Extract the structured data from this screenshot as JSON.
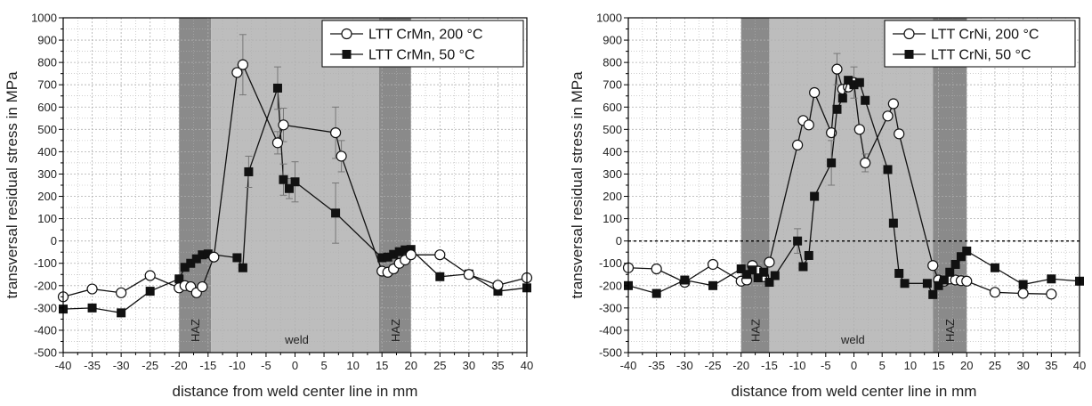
{
  "figure": {
    "panels": [
      {
        "name": "left",
        "zones": {
          "haz": "HAZ",
          "weld": "weld"
        }
      },
      {
        "name": "right",
        "zones": {
          "haz": "HAZ",
          "weld": "weld"
        }
      }
    ]
  },
  "colors": {
    "haz_shade": "#8a8a8a",
    "weld_shade": "#bdbdbd",
    "grid": "#b0b0b0",
    "series": "#111111",
    "error_bar": "#777777",
    "zero_line": "#000000"
  },
  "chart_data": [
    {
      "type": "line",
      "xlabel": "distance from weld center line in mm",
      "ylabel": "transversal residual stress in MPa",
      "xlim": [
        -40,
        40
      ],
      "ylim": [
        -500,
        1000
      ],
      "xticks": [
        -40,
        -35,
        -30,
        -25,
        -20,
        -15,
        -10,
        -5,
        0,
        5,
        10,
        15,
        20,
        25,
        30,
        35,
        40
      ],
      "yticks": [
        -500,
        -400,
        -300,
        -200,
        -100,
        0,
        100,
        200,
        300,
        400,
        500,
        600,
        700,
        800,
        900,
        1000
      ],
      "grid": true,
      "legend_position": "top-right",
      "zero_line": false,
      "zones": [
        {
          "kind": "haz",
          "from": -20,
          "to": -14.5
        },
        {
          "kind": "weld",
          "from": -14.5,
          "to": 14.5
        },
        {
          "kind": "haz",
          "from": 14.5,
          "to": 20
        }
      ],
      "series": [
        {
          "name": "LTT CrMn, 50 °C",
          "marker": "square",
          "points": [
            [
              -40,
              -305,
              null
            ],
            [
              -35,
              -300,
              null
            ],
            [
              -30,
              -322,
              null
            ],
            [
              -25,
              -225,
              null
            ],
            [
              -20,
              -170,
              null
            ],
            [
              -19,
              -118,
              null
            ],
            [
              -18,
              -100,
              null
            ],
            [
              -17,
              -80,
              null
            ],
            [
              -16,
              -62,
              null
            ],
            [
              -15,
              -58,
              null
            ],
            [
              -10,
              -75,
              null
            ],
            [
              -9,
              -120,
              null
            ],
            [
              -8,
              310,
              70
            ],
            [
              -3,
              685,
              95
            ],
            [
              -2,
              275,
              70
            ],
            [
              -1,
              235,
              45
            ],
            [
              0,
              265,
              90
            ],
            [
              7,
              125,
              135
            ],
            [
              15,
              -75,
              null
            ],
            [
              16,
              -72,
              null
            ],
            [
              17,
              -60,
              null
            ],
            [
              18,
              -48,
              null
            ],
            [
              19,
              -40,
              null
            ],
            [
              20,
              -38,
              null
            ],
            [
              25,
              -160,
              null
            ],
            [
              30,
              -148,
              null
            ],
            [
              35,
              -225,
              null
            ],
            [
              40,
              -210,
              null
            ]
          ]
        },
        {
          "name": "LTT CrMn, 200 °C",
          "marker": "circle",
          "points": [
            [
              -40,
              -250,
              null
            ],
            [
              -35,
              -215,
              null
            ],
            [
              -30,
              -232,
              null
            ],
            [
              -25,
              -155,
              null
            ],
            [
              -20,
              -210,
              null
            ],
            [
              -19,
              -200,
              null
            ],
            [
              -18,
              -205,
              null
            ],
            [
              -17,
              -232,
              null
            ],
            [
              -16,
              -205,
              null
            ],
            [
              -14,
              -72,
              null
            ],
            [
              -10,
              755,
              null
            ],
            [
              -9,
              790,
              135
            ],
            [
              -3,
              440,
              50
            ],
            [
              -2,
              520,
              75
            ],
            [
              7,
              485,
              115
            ],
            [
              8,
              380,
              70
            ],
            [
              15,
              -135,
              null
            ],
            [
              16,
              -140,
              null
            ],
            [
              17,
              -125,
              null
            ],
            [
              18,
              -100,
              null
            ],
            [
              19,
              -85,
              null
            ],
            [
              20,
              -62,
              null
            ],
            [
              25,
              -62,
              null
            ],
            [
              30,
              -150,
              null
            ],
            [
              35,
              -198,
              null
            ],
            [
              40,
              -165,
              null
            ]
          ]
        }
      ]
    },
    {
      "type": "line",
      "xlabel": "distance from weld center line in mm",
      "ylabel": "transversal residual stress in MPa",
      "xlim": [
        -40,
        40
      ],
      "ylim": [
        -500,
        1000
      ],
      "xticks": [
        -40,
        -35,
        -30,
        -25,
        -20,
        -15,
        -10,
        -5,
        0,
        5,
        10,
        15,
        20,
        25,
        30,
        35,
        40
      ],
      "yticks": [
        -500,
        -400,
        -300,
        -200,
        -100,
        0,
        100,
        200,
        300,
        400,
        500,
        600,
        700,
        800,
        900,
        1000
      ],
      "grid": true,
      "legend_position": "top-right",
      "zero_line": true,
      "zones": [
        {
          "kind": "haz",
          "from": -20,
          "to": -15
        },
        {
          "kind": "weld",
          "from": -15,
          "to": 14
        },
        {
          "kind": "haz",
          "from": 14,
          "to": 20
        }
      ],
      "series": [
        {
          "name": "LTT CrNi, 200 °C",
          "marker": "circle",
          "points": [
            [
              -40,
              -120,
              null
            ],
            [
              -35,
              -125,
              null
            ],
            [
              -30,
              -185,
              null
            ],
            [
              -25,
              -105,
              null
            ],
            [
              -20,
              -180,
              null
            ],
            [
              -19,
              -175,
              null
            ],
            [
              -18,
              -110,
              null
            ],
            [
              -17,
              -135,
              null
            ],
            [
              -16,
              -160,
              null
            ],
            [
              -15,
              -95,
              null
            ],
            [
              -10,
              430,
              null
            ],
            [
              -9,
              540,
              null
            ],
            [
              -8,
              520,
              null
            ],
            [
              -7,
              665,
              null
            ],
            [
              -4,
              485,
              null
            ],
            [
              -3,
              770,
              70
            ],
            [
              -2,
              680,
              null
            ],
            [
              -1,
              690,
              null
            ],
            [
              0,
              710,
              70
            ],
            [
              1,
              500,
              null
            ],
            [
              2,
              350,
              40
            ],
            [
              6,
              560,
              null
            ],
            [
              7,
              615,
              null
            ],
            [
              8,
              480,
              null
            ],
            [
              14,
              -110,
              null
            ],
            [
              15,
              -175,
              null
            ],
            [
              16,
              -180,
              null
            ],
            [
              17,
              -170,
              null
            ],
            [
              18,
              -175,
              null
            ],
            [
              19,
              -178,
              null
            ],
            [
              20,
              -180,
              null
            ],
            [
              25,
              -230,
              null
            ],
            [
              30,
              -235,
              null
            ],
            [
              35,
              -238,
              null
            ]
          ]
        },
        {
          "name": "LTT CrNi, 50 °C",
          "marker": "square",
          "points": [
            [
              -40,
              -200,
              null
            ],
            [
              -35,
              -235,
              null
            ],
            [
              -30,
              -175,
              null
            ],
            [
              -25,
              -200,
              null
            ],
            [
              -20,
              -125,
              null
            ],
            [
              -19,
              -150,
              null
            ],
            [
              -18,
              -130,
              null
            ],
            [
              -17,
              -165,
              null
            ],
            [
              -16,
              -140,
              null
            ],
            [
              -15,
              -185,
              null
            ],
            [
              -14,
              -155,
              null
            ],
            [
              -10,
              0,
              55
            ],
            [
              -9,
              -115,
              null
            ],
            [
              -8,
              -65,
              null
            ],
            [
              -7,
              200,
              null
            ],
            [
              -4,
              350,
              100
            ],
            [
              -3,
              590,
              null
            ],
            [
              -2,
              640,
              null
            ],
            [
              -1,
              720,
              null
            ],
            [
              0,
              700,
              null
            ],
            [
              1,
              710,
              null
            ],
            [
              2,
              630,
              null
            ],
            [
              6,
              320,
              null
            ],
            [
              7,
              80,
              null
            ],
            [
              8,
              -145,
              null
            ],
            [
              9,
              -190,
              null
            ],
            [
              13,
              -190,
              null
            ],
            [
              14,
              -240,
              null
            ],
            [
              15,
              -200,
              null
            ],
            [
              16,
              -175,
              null
            ],
            [
              17,
              -140,
              null
            ],
            [
              18,
              -105,
              null
            ],
            [
              19,
              -70,
              null
            ],
            [
              20,
              -45,
              null
            ],
            [
              25,
              -120,
              null
            ],
            [
              30,
              -195,
              null
            ],
            [
              35,
              -170,
              null
            ],
            [
              40,
              -180,
              null
            ]
          ]
        }
      ]
    }
  ]
}
